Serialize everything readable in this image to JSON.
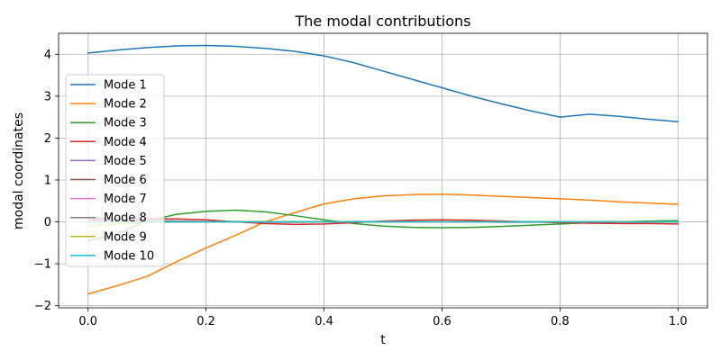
{
  "chart_data": {
    "type": "line",
    "title": "The modal contributions",
    "xlabel": "t",
    "ylabel": "modal coordinates",
    "xlim": [
      -0.05,
      1.05
    ],
    "ylim": [
      -2.05,
      4.5
    ],
    "xticks": [
      0.0,
      0.2,
      0.4,
      0.6,
      0.8,
      1.0
    ],
    "xtick_labels": [
      "0.0",
      "0.2",
      "0.4",
      "0.6",
      "0.8",
      "1.0"
    ],
    "yticks": [
      -2,
      -1,
      0,
      1,
      2,
      3,
      4
    ],
    "ytick_labels": [
      "−2",
      "−1",
      "0",
      "1",
      "2",
      "3",
      "4"
    ],
    "grid": true,
    "legend_position": "center-left",
    "x": [
      0.0,
      0.05,
      0.1,
      0.15,
      0.2,
      0.25,
      0.3,
      0.35,
      0.4,
      0.45,
      0.5,
      0.55,
      0.6,
      0.65,
      0.7,
      0.75,
      0.8,
      0.85,
      0.9,
      0.95,
      1.0
    ],
    "series": [
      {
        "name": "Mode 1",
        "color": "#1f77b4",
        "values": [
          4.03,
          4.1,
          4.16,
          4.2,
          4.21,
          4.19,
          4.14,
          4.07,
          3.96,
          3.8,
          3.6,
          3.4,
          3.2,
          3.0,
          2.82,
          2.65,
          2.5,
          2.57,
          2.52,
          2.45,
          2.39
        ]
      },
      {
        "name": "Mode 2",
        "color": "#ff7f0e",
        "values": [
          -1.72,
          -1.52,
          -1.3,
          -0.95,
          -0.62,
          -0.32,
          0.0,
          0.22,
          0.43,
          0.55,
          0.62,
          0.65,
          0.66,
          0.64,
          0.61,
          0.58,
          0.55,
          0.52,
          0.48,
          0.45,
          0.42
        ]
      },
      {
        "name": "Mode 3",
        "color": "#2ca02c",
        "values": [
          -0.45,
          -0.28,
          0.02,
          0.18,
          0.25,
          0.28,
          0.24,
          0.15,
          0.05,
          -0.04,
          -0.1,
          -0.13,
          -0.14,
          -0.13,
          -0.11,
          -0.08,
          -0.05,
          -0.02,
          0.0,
          0.02,
          0.03
        ]
      },
      {
        "name": "Mode 4",
        "color": "#d62728",
        "values": [
          0.05,
          0.06,
          0.07,
          0.07,
          0.05,
          0.0,
          -0.04,
          -0.06,
          -0.05,
          -0.02,
          0.02,
          0.04,
          0.05,
          0.04,
          0.02,
          0.0,
          -0.02,
          -0.03,
          -0.04,
          -0.04,
          -0.05
        ]
      },
      {
        "name": "Mode 5",
        "color": "#9467bd",
        "values": [
          0.02,
          0.03,
          0.03,
          0.02,
          0.01,
          0.0,
          -0.01,
          -0.01,
          0.0,
          0.01,
          0.01,
          0.01,
          0.0,
          0.0,
          -0.01,
          -0.01,
          0.0,
          0.0,
          0.0,
          0.0,
          0.0
        ]
      },
      {
        "name": "Mode 6",
        "color": "#8c564b",
        "values": [
          0.1,
          0.06,
          0.02,
          0.0,
          0.0,
          0.01,
          0.0,
          0.0,
          0.0,
          0.0,
          0.0,
          0.0,
          0.0,
          0.0,
          0.0,
          0.0,
          0.0,
          0.0,
          0.0,
          0.0,
          0.0
        ]
      },
      {
        "name": "Mode 7",
        "color": "#e377c2",
        "values": [
          0.02,
          0.01,
          0.0,
          0.0,
          0.0,
          0.0,
          0.0,
          0.0,
          0.0,
          0.0,
          0.0,
          0.0,
          0.0,
          0.0,
          0.0,
          0.0,
          0.0,
          0.0,
          0.0,
          0.0,
          0.0
        ]
      },
      {
        "name": "Mode 8",
        "color": "#7f7f7f",
        "values": [
          0.12,
          0.07,
          0.03,
          0.01,
          0.0,
          0.0,
          0.0,
          0.0,
          0.0,
          0.0,
          0.0,
          0.0,
          0.0,
          0.0,
          0.0,
          0.0,
          0.0,
          0.0,
          0.0,
          0.0,
          0.0
        ]
      },
      {
        "name": "Mode 9",
        "color": "#bcbd22",
        "values": [
          -0.1,
          -0.05,
          -0.02,
          0.0,
          0.0,
          0.0,
          0.0,
          0.0,
          0.0,
          0.0,
          0.0,
          0.0,
          0.0,
          0.0,
          0.0,
          0.0,
          0.0,
          0.0,
          0.0,
          0.0,
          0.0
        ]
      },
      {
        "name": "Mode 10",
        "color": "#17becf",
        "values": [
          0.0,
          0.0,
          0.0,
          0.0,
          0.0,
          0.0,
          0.0,
          0.0,
          0.0,
          0.0,
          0.0,
          0.0,
          0.0,
          0.0,
          0.0,
          0.0,
          0.0,
          0.0,
          0.0,
          0.0,
          0.0
        ]
      }
    ]
  }
}
